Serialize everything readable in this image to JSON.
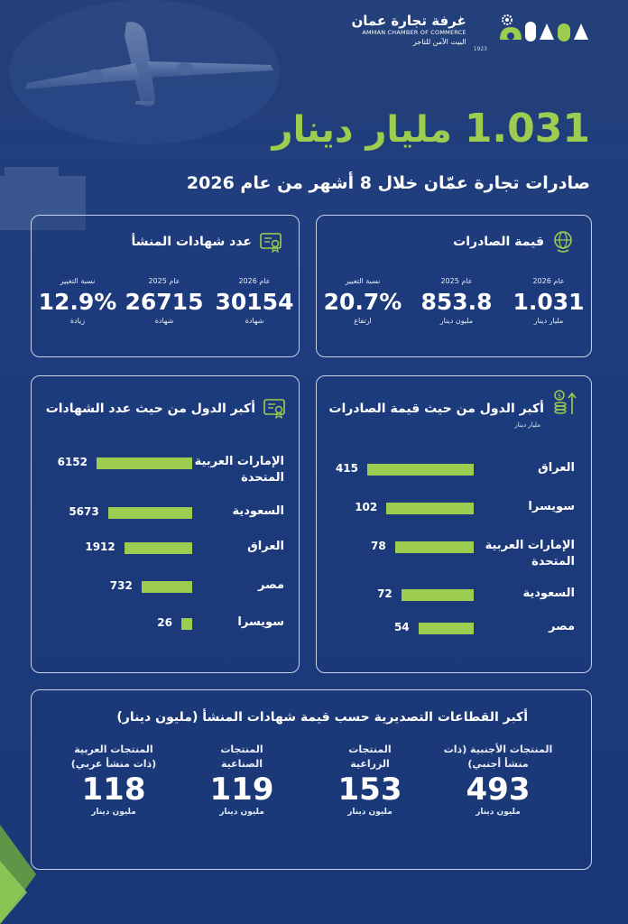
{
  "header": {
    "org_name_ar": "غرفة تجارة عمان",
    "org_name_en": "AMMAN CHAMBER OF COMMERCE",
    "tagline": "البيت الآمن للتاجر",
    "year": "1923"
  },
  "headline": {
    "value": "1.031",
    "unit": "مليار دينار",
    "subtitle": "صادرات تجارة عمّان خلال 8 أشهر من عام 2026"
  },
  "export_value": {
    "title": "قيمة الصادرات",
    "icon": "globe-icon",
    "stats": [
      {
        "label": "عام 2026",
        "value": "1.031",
        "unit": "مليار دينار"
      },
      {
        "label": "عام 2025",
        "value": "853.8",
        "unit": "مليون دينار"
      },
      {
        "label": "نسبة التغيير",
        "value": "20.7%",
        "unit": "ارتفاع"
      }
    ]
  },
  "certificates": {
    "title": "عدد شهادات المنشأ",
    "icon": "certificate-icon",
    "stats": [
      {
        "label": "عام 2026",
        "value": "30154",
        "unit": "شهادة"
      },
      {
        "label": "عام 2025",
        "value": "26715",
        "unit": "شهادة"
      },
      {
        "label": "نسبة التغيير",
        "value": "12.9%",
        "unit": "زيادة"
      }
    ]
  },
  "top_export_countries": {
    "title": "أكبر الدول من حيث قيمة الصادرات",
    "subtitle": "مليار دينار",
    "icon": "money-growth-icon",
    "items": [
      {
        "label": "العراق",
        "value": 415
      },
      {
        "label": "سويسرا",
        "value": 102
      },
      {
        "label": "الإمارات العربية المتحدة",
        "value": 78
      },
      {
        "label": "السعودية",
        "value": 72
      },
      {
        "label": "مصر",
        "value": 54
      }
    ],
    "bar_fractions": [
      1.0,
      0.82,
      0.74,
      0.68,
      0.52
    ]
  },
  "top_cert_countries": {
    "title": "أكبر الدول من حيث عدد الشهادات",
    "icon": "certificate-icon",
    "items": [
      {
        "label": "الإمارات العربية المتحدة",
        "value": 6152
      },
      {
        "label": "السعودية",
        "value": 5673
      },
      {
        "label": "العراق",
        "value": 1912
      },
      {
        "label": "مصر",
        "value": 732
      },
      {
        "label": "سويسرا",
        "value": 26
      }
    ],
    "bar_fractions": [
      1.0,
      0.88,
      0.71,
      0.53,
      0.1
    ]
  },
  "sectors": {
    "title": "أكبر القطاعات التصديرية حسب قيمة شهادات المنشأ (مليون دينار)",
    "items": [
      {
        "name": "المنتجات الأجنبية (ذات منشأ أجنبي)",
        "value": "493",
        "unit": "مليون دينار"
      },
      {
        "name": "المنتجات الزراعية",
        "value": "153",
        "unit": "مليون دينار"
      },
      {
        "name": "المنتجات الصناعية",
        "value": "119",
        "unit": "مليون دينار"
      },
      {
        "name": "المنتجات العربية (ذات منشأ عربي)",
        "value": "118",
        "unit": "مليون دينار"
      }
    ]
  },
  "colors": {
    "accent": "#9ccd50",
    "background": "#1e3d7f",
    "card_border": "#c7d2e6"
  }
}
